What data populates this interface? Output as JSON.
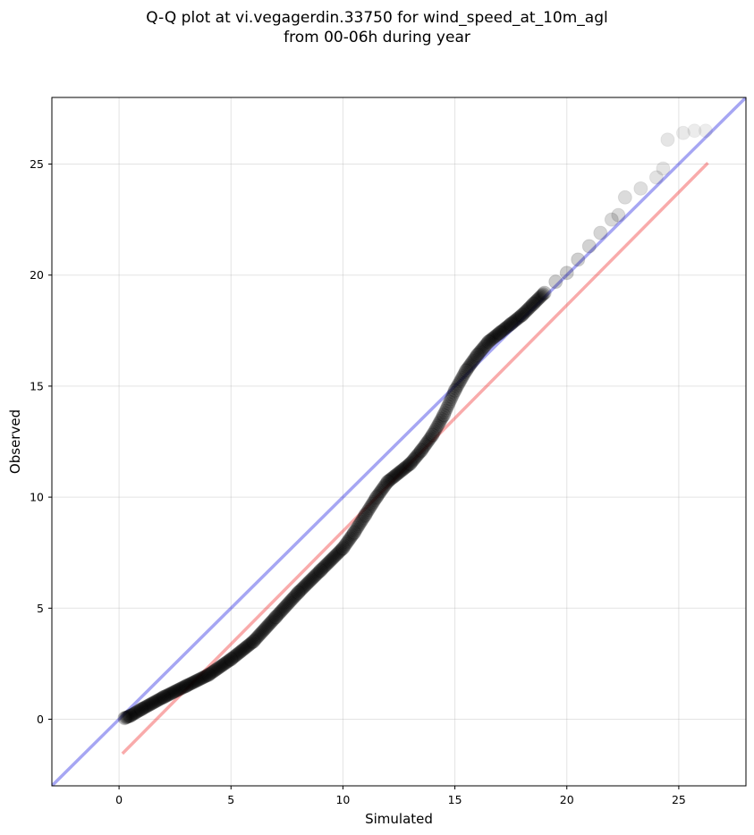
{
  "chart_data": {
    "type": "scatter",
    "title": "Q-Q plot at vi.vegagerdin.33750 for wind_speed_at_10m_agl",
    "subtitle": "from 00-06h during year",
    "xlabel": "Simulated",
    "ylabel": "Observed",
    "xlim": [
      -3,
      28
    ],
    "ylim": [
      -3,
      28
    ],
    "xticks": [
      "0",
      "5",
      "10",
      "15",
      "20",
      "25"
    ],
    "yticks": [
      "0",
      "5",
      "10",
      "15",
      "20",
      "25"
    ],
    "grid": true,
    "point_color": "#000000",
    "identity_line": {
      "x": [
        -3,
        28
      ],
      "y": [
        -3,
        28
      ],
      "color": "#0000dd"
    },
    "fit_line": {
      "x": [
        0.15,
        26.3
      ],
      "y": [
        -1.55,
        25.05
      ],
      "color": "#ee2222"
    },
    "quantiles": {
      "x": [
        0.25,
        0.5,
        1.0,
        2.0,
        3.0,
        4.0,
        5.0,
        6.0,
        7.0,
        8.0,
        9.0,
        10.0,
        10.5,
        11.0,
        11.5,
        12.0,
        13.0,
        13.5,
        14.0,
        14.5,
        15.0,
        15.5,
        16.0,
        16.5,
        17.0,
        17.5,
        18.0,
        18.5,
        19.0,
        19.5,
        20.0,
        20.5,
        21.0,
        21.5,
        22.0,
        22.3,
        22.6,
        23.3,
        24.0,
        24.3,
        24.5,
        25.2,
        25.7,
        26.2
      ],
      "y": [
        0.05,
        0.15,
        0.45,
        1.0,
        1.5,
        2.0,
        2.7,
        3.5,
        4.6,
        5.7,
        6.7,
        7.7,
        8.4,
        9.2,
        10.0,
        10.7,
        11.5,
        12.1,
        12.8,
        13.7,
        14.8,
        15.7,
        16.4,
        17.0,
        17.4,
        17.8,
        18.2,
        18.7,
        19.2,
        19.7,
        20.1,
        20.7,
        21.3,
        21.9,
        22.5,
        22.7,
        23.5,
        23.9,
        24.4,
        24.8,
        26.1,
        26.4,
        26.5,
        26.5
      ]
    }
  }
}
